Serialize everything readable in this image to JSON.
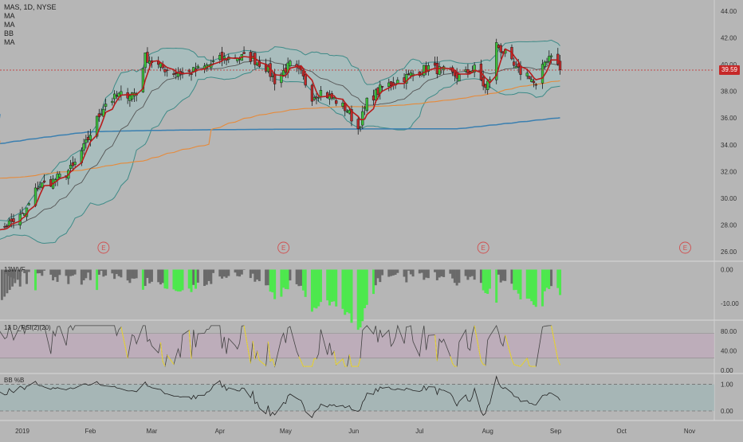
{
  "header": {
    "symbol_line": "MAS, 1D, NYSE"
  },
  "indicator_legend": [
    "MA",
    "MA",
    "BB",
    "MA"
  ],
  "price_axis": {
    "ticks": [
      "26.00",
      "28.00",
      "30.00",
      "32.00",
      "34.00",
      "36.00",
      "38.00",
      "40.00",
      "42.00",
      "44.00"
    ],
    "current_price_label": "39.59"
  },
  "time_axis": {
    "labels": [
      "2019",
      "Feb",
      "Mar",
      "Apr",
      "May",
      "Jun",
      "Jul",
      "Aug",
      "Sep",
      "Oct",
      "Nov"
    ]
  },
  "earnings_marker": "E",
  "panes": {
    "wvf": {
      "label": "13WVF",
      "ticks": [
        "0.00",
        "-10.00"
      ]
    },
    "rsi": {
      "label": "13  D_RSI(2)(20)",
      "ticks": [
        "80.00",
        "40.00",
        "0.00"
      ]
    },
    "bbp": {
      "label": "BB %B",
      "ticks": [
        "1.00",
        "0.00"
      ]
    }
  },
  "colors": {
    "background": "#b6b6b6",
    "candle_up": "#3cc43c",
    "candle_down": "#c12a2a",
    "ma_fast": "#b71c1c",
    "ma_mid": "#555555",
    "ma_slow_orange": "#e68a3a",
    "ma_long_blue": "#3a7fb0",
    "bollinger": "#3f8b88",
    "bollinger_fill": "#9fc2c2",
    "wvf_gray": "#6a6a6a",
    "wvf_green": "#4de84d",
    "rsi_line": "#444444",
    "rsi_highlight": "#e8d43a",
    "rsi_band": "#c2a6bd",
    "bbp_fill": "#a0b6b6",
    "price_badge": "#c62828",
    "earnings": "#d05050"
  },
  "chart_data": {
    "type": "candlestick",
    "symbol": "MAS",
    "interval": "1D",
    "exchange": "NYSE",
    "x_range": [
      "2019-01-01",
      "2019-11-05"
    ],
    "ylim": [
      25.4,
      44.6
    ],
    "last_close": 39.59,
    "earnings_dates": [
      "2019-02-07",
      "2019-04-30",
      "2019-07-30",
      "2019-10-30"
    ],
    "price_anchors": [
      {
        "date": "2018-12-20",
        "close": 27.6
      },
      {
        "date": "2019-01-02",
        "close": 28.8
      },
      {
        "date": "2019-01-08",
        "close": 30.9
      },
      {
        "date": "2019-01-14",
        "close": 31.2
      },
      {
        "date": "2019-01-18",
        "close": 31.6
      },
      {
        "date": "2019-01-24",
        "close": 32.3
      },
      {
        "date": "2019-01-30",
        "close": 34.1
      },
      {
        "date": "2019-02-04",
        "close": 35.9
      },
      {
        "date": "2019-02-08",
        "close": 37.1
      },
      {
        "date": "2019-02-14",
        "close": 37.7
      },
      {
        "date": "2019-02-22",
        "close": 37.9
      },
      {
        "date": "2019-02-26",
        "close": 40.6
      },
      {
        "date": "2019-03-04",
        "close": 39.9
      },
      {
        "date": "2019-03-11",
        "close": 39.4
      },
      {
        "date": "2019-03-18",
        "close": 39.4
      },
      {
        "date": "2019-03-25",
        "close": 39.8
      },
      {
        "date": "2019-04-01",
        "close": 40.4
      },
      {
        "date": "2019-04-08",
        "close": 40.6
      },
      {
        "date": "2019-04-15",
        "close": 40.5
      },
      {
        "date": "2019-04-22",
        "close": 39.8
      },
      {
        "date": "2019-04-26",
        "close": 38.8
      },
      {
        "date": "2019-04-30",
        "close": 39.5
      },
      {
        "date": "2019-05-03",
        "close": 40.0
      },
      {
        "date": "2019-05-08",
        "close": 39.3
      },
      {
        "date": "2019-05-13",
        "close": 37.6
      },
      {
        "date": "2019-05-17",
        "close": 38.0
      },
      {
        "date": "2019-05-23",
        "close": 37.4
      },
      {
        "date": "2019-05-29",
        "close": 36.6
      },
      {
        "date": "2019-06-03",
        "close": 35.2
      },
      {
        "date": "2019-06-07",
        "close": 37.2
      },
      {
        "date": "2019-06-14",
        "close": 38.3
      },
      {
        "date": "2019-06-21",
        "close": 38.8
      },
      {
        "date": "2019-06-28",
        "close": 39.3
      },
      {
        "date": "2019-07-05",
        "close": 39.8
      },
      {
        "date": "2019-07-12",
        "close": 39.5
      },
      {
        "date": "2019-07-19",
        "close": 39.1
      },
      {
        "date": "2019-07-26",
        "close": 39.7
      },
      {
        "date": "2019-07-31",
        "close": 38.2
      },
      {
        "date": "2019-08-02",
        "close": 39.0
      },
      {
        "date": "2019-08-05",
        "close": 41.5
      },
      {
        "date": "2019-08-09",
        "close": 40.8
      },
      {
        "date": "2019-08-14",
        "close": 39.6
      },
      {
        "date": "2019-08-20",
        "close": 39.2
      },
      {
        "date": "2019-08-23",
        "close": 38.3
      },
      {
        "date": "2019-08-27",
        "close": 40.2
      },
      {
        "date": "2019-08-30",
        "close": 40.9
      },
      {
        "date": "2019-09-03",
        "close": 39.59
      }
    ],
    "indicators": [
      {
        "name": "MA",
        "kind": "fast moving average",
        "color": "#b71c1c"
      },
      {
        "name": "MA",
        "kind": "medium moving average",
        "color": "#555555"
      },
      {
        "name": "BB",
        "kind": "Bollinger Bands",
        "color": "#3f8b88"
      },
      {
        "name": "MA",
        "kind": "slow moving average",
        "color": "#e68a3a"
      },
      {
        "name": "MA",
        "kind": "long moving average",
        "color": "#3a7fb0"
      }
    ],
    "subpanes": [
      {
        "name": "13WVF",
        "ylim": [
          -14,
          2
        ]
      },
      {
        "name": "13  D_RSI(2)(20)",
        "ylim": [
          -5,
          100
        ]
      },
      {
        "name": "BB %B",
        "ylim": [
          -0.3,
          1.35
        ]
      }
    ]
  }
}
